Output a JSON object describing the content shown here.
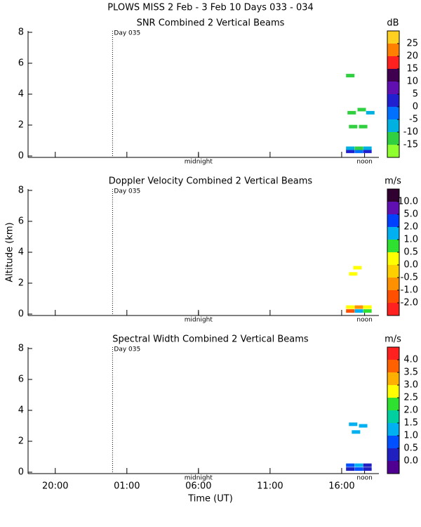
{
  "header": {
    "title": "PLOWS MISS    2 Feb -  3 Feb 10 Days 033 - 034"
  },
  "chart_data": [
    {
      "type": "heatmap",
      "title": "SNR Combined 2 Vertical Beams",
      "xlim": [
        18.1,
        42.6
      ],
      "ylim": [
        0,
        8
      ],
      "yticks": [
        0,
        2,
        4,
        6,
        8
      ],
      "annotations": [
        {
          "x": 24,
          "label": "Day 035",
          "line": true
        },
        {
          "x": 30,
          "label": "midnight"
        },
        {
          "x": 41.6,
          "label": "noon"
        }
      ],
      "x": [
        40.6,
        41.2,
        41.8,
        40.6,
        41.2,
        41.8,
        40.8,
        41.5,
        40.7,
        41.4,
        42.0,
        40.6
      ],
      "y": [
        0.3,
        0.3,
        0.3,
        0.5,
        0.5,
        0.5,
        1.9,
        1.9,
        2.8,
        3.0,
        2.8,
        5.2
      ],
      "values": [
        0,
        -5,
        0,
        -10,
        -12,
        -10,
        -14,
        -14,
        -12,
        -12,
        -10,
        -14
      ],
      "colorbar": {
        "label": "dB",
        "ticks": [
          -15,
          -10,
          -5,
          0,
          5,
          10,
          15,
          20,
          25
        ],
        "colors": [
          "#90ff30",
          "#30d040",
          "#00b0e0",
          "#0070ff",
          "#2020d0",
          "#6010b0",
          "#400050",
          "#ff2020",
          "#ff8000",
          "#ffd020"
        ]
      }
    },
    {
      "type": "heatmap",
      "title": "Doppler Velocity Combined 2 Vertical Beams",
      "ylabel": "Altitude (km)",
      "xlim": [
        18.1,
        42.6
      ],
      "ylim": [
        0,
        8
      ],
      "yticks": [
        0,
        2,
        4,
        6,
        8
      ],
      "annotations": [
        {
          "x": 24,
          "label": "Day 035",
          "line": true
        },
        {
          "x": 30,
          "label": "midnight"
        },
        {
          "x": 41.6,
          "label": "noon"
        }
      ],
      "x": [
        40.6,
        41.2,
        41.8,
        40.6,
        41.2,
        41.8,
        41.1,
        40.8
      ],
      "y": [
        0.2,
        0.2,
        0.2,
        0.45,
        0.45,
        0.45,
        3.0,
        2.6
      ],
      "values": [
        -2,
        1,
        0.7,
        0.2,
        -0.7,
        0.3,
        0.2,
        0.2
      ],
      "colorbar": {
        "label": "m/s",
        "ticks": [
          {
            "value": -2,
            "label": "-2.0"
          },
          {
            "value": -1,
            "label": "-1.0"
          },
          -0.5,
          {
            "value": 0,
            "label": "0.0"
          },
          0.5,
          {
            "value": 1,
            "label": "1.0"
          },
          {
            "value": 2,
            "label": "2.0"
          },
          {
            "value": 5,
            "label": "5.0"
          },
          {
            "value": 10,
            "label": "10.0"
          }
        ],
        "colors": [
          "#ff2020",
          "#ff5000",
          "#ff9000",
          "#ffd000",
          "#ffff00",
          "#30e030",
          "#00b0f0",
          "#0040ff",
          "#6010b0",
          "#300030"
        ]
      }
    },
    {
      "type": "heatmap",
      "title": "Spectral Width Combined 2 Vertical Beams",
      "xlabel": "Time (UT)",
      "xlim": [
        18.1,
        42.6
      ],
      "ylim": [
        0,
        8
      ],
      "yticks": [
        0,
        2,
        4,
        6,
        8
      ],
      "xticks": [
        {
          "value": 20,
          "label": "20:00"
        },
        {
          "value": 25,
          "label": "01:00"
        },
        {
          "value": 30,
          "label": "06:00"
        },
        {
          "value": 35,
          "label": "11:00"
        },
        {
          "value": 40,
          "label": "16:00"
        }
      ],
      "annotations": [
        {
          "x": 24,
          "label": "Day 035",
          "line": true
        },
        {
          "x": 30,
          "label": "midnight"
        },
        {
          "x": 41.6,
          "label": "noon"
        }
      ],
      "x": [
        40.6,
        41.2,
        41.8,
        40.6,
        41.2,
        41.8,
        40.8,
        41.0,
        41.5
      ],
      "y": [
        0.2,
        0.2,
        0.2,
        0.45,
        0.45,
        0.45,
        3.1,
        2.6,
        3.0
      ],
      "values": [
        0.3,
        0.7,
        0.3,
        0.7,
        1.2,
        0.3,
        1.2,
        1.2,
        1.2
      ],
      "colorbar": {
        "label": "m/s",
        "ticks": [
          {
            "value": 0,
            "label": "0.0"
          },
          0.5,
          {
            "value": 1,
            "label": "1.0"
          },
          1.5,
          {
            "value": 2,
            "label": "2.0"
          },
          2.5,
          {
            "value": 3,
            "label": "3.0"
          },
          3.5,
          {
            "value": 4,
            "label": "4.0"
          }
        ],
        "colors": [
          "#500090",
          "#2020c0",
          "#0050ff",
          "#00b0f0",
          "#00d0a0",
          "#30e030",
          "#ffff00",
          "#ffb000",
          "#ff6000",
          "#ff2020"
        ]
      }
    }
  ]
}
